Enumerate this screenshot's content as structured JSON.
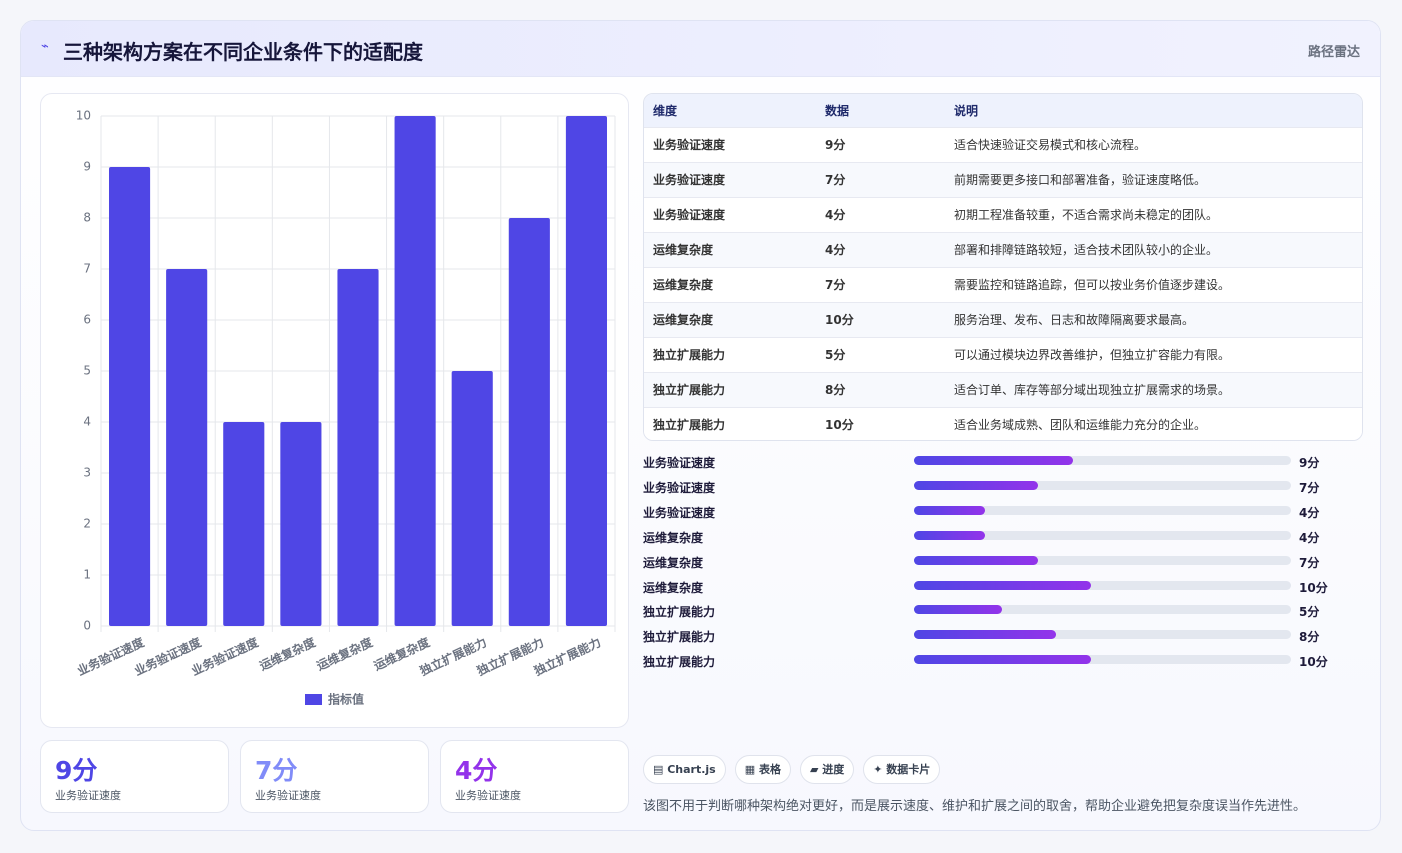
{
  "header": {
    "icon": "⌁",
    "title": "三种架构方案在不同企业条件下的适配度",
    "right": "路径雷达"
  },
  "chart_data": {
    "type": "bar",
    "categories": [
      "业务验证速度",
      "业务验证速度",
      "业务验证速度",
      "运维复杂度",
      "运维复杂度",
      "运维复杂度",
      "独立扩展能力",
      "独立扩展能力",
      "独立扩展能力"
    ],
    "series": [
      {
        "name": "指标值",
        "color": "#4f46e5",
        "values": [
          9,
          7,
          4,
          4,
          7,
          10,
          5,
          8,
          10
        ]
      }
    ],
    "ylim": [
      0,
      10
    ],
    "yticks": [
      0,
      1,
      2,
      3,
      4,
      5,
      6,
      7,
      8,
      9,
      10
    ],
    "grid": true,
    "legend": "bottom"
  },
  "table": {
    "columns": [
      "维度",
      "数据",
      "说明"
    ],
    "rows": [
      [
        "业务验证速度",
        "9分",
        "适合快速验证交易模式和核心流程。"
      ],
      [
        "业务验证速度",
        "7分",
        "前期需要更多接口和部署准备，验证速度略低。"
      ],
      [
        "业务验证速度",
        "4分",
        "初期工程准备较重，不适合需求尚未稳定的团队。"
      ],
      [
        "运维复杂度",
        "4分",
        "部署和排障链路较短，适合技术团队较小的企业。"
      ],
      [
        "运维复杂度",
        "7分",
        "需要监控和链路追踪，但可以按业务价值逐步建设。"
      ],
      [
        "运维复杂度",
        "10分",
        "服务治理、发布、日志和故障隔离要求最高。"
      ],
      [
        "独立扩展能力",
        "5分",
        "可以通过模块边界改善维护，但独立扩容能力有限。"
      ],
      [
        "独立扩展能力",
        "8分",
        "适合订单、库存等部分域出现独立扩展需求的场景。"
      ],
      [
        "独立扩展能力",
        "10分",
        "适合业务域成熟、团队和运维能力充分的企业。"
      ]
    ]
  },
  "progress": {
    "xlim": [
      0,
      21.3
    ]
  },
  "cards": [
    {
      "value": "9分",
      "label": "业务验证速度",
      "color": "#4f46e5"
    },
    {
      "value": "7分",
      "label": "业务验证速度",
      "color": "#818cf8"
    },
    {
      "value": "4分",
      "label": "业务验证速度",
      "color": "#9333ea"
    }
  ],
  "chips": [
    "▤ Chart.js",
    "▦ 表格",
    "▰ 进度",
    "✦ 数据卡片"
  ],
  "note": "该图不用于判断哪种架构绝对更好，而是展示速度、维护和扩展之间的取舍，帮助企业避免把复杂度误当作先进性。"
}
